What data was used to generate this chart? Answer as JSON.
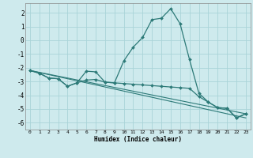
{
  "xlabel": "Humidex (Indice chaleur)",
  "background_color": "#ceeaed",
  "grid_color": "#aad4d8",
  "line_color": "#2d7a78",
  "xlim": [
    -0.5,
    23.5
  ],
  "ylim": [
    -6.5,
    2.7
  ],
  "yticks": [
    -6,
    -5,
    -4,
    -3,
    -2,
    -1,
    0,
    1,
    2
  ],
  "xticks": [
    0,
    1,
    2,
    3,
    4,
    5,
    6,
    7,
    8,
    9,
    10,
    11,
    12,
    13,
    14,
    15,
    16,
    17,
    18,
    19,
    20,
    21,
    22,
    23
  ],
  "line1_x": [
    0,
    1,
    2,
    3,
    4,
    5,
    6,
    7,
    8,
    9,
    10,
    11,
    12,
    13,
    14,
    15,
    16,
    17,
    18,
    19,
    20,
    21,
    22,
    23
  ],
  "line1_y": [
    -2.2,
    -2.4,
    -2.75,
    -2.8,
    -3.35,
    -3.1,
    -2.25,
    -2.3,
    -3.05,
    -3.1,
    -1.5,
    -0.5,
    0.2,
    1.5,
    1.6,
    2.3,
    1.2,
    -1.4,
    -3.85,
    -4.5,
    -4.9,
    -4.95,
    -5.65,
    -5.35
  ],
  "line2_x": [
    0,
    1,
    2,
    3,
    4,
    5,
    6,
    7,
    8,
    9,
    10,
    11,
    12,
    13,
    14,
    15,
    16,
    17,
    18,
    19,
    20,
    21,
    22,
    23
  ],
  "line2_y": [
    -2.2,
    -2.4,
    -2.75,
    -2.8,
    -3.35,
    -3.1,
    -2.9,
    -2.85,
    -3.05,
    -3.1,
    -3.15,
    -3.2,
    -3.25,
    -3.3,
    -3.35,
    -3.4,
    -3.45,
    -3.5,
    -4.1,
    -4.5,
    -4.9,
    -4.95,
    -5.65,
    -5.35
  ],
  "line3_x": [
    0,
    23
  ],
  "line3_y": [
    -2.2,
    -5.35
  ],
  "line4_x": [
    0,
    23
  ],
  "line4_y": [
    -2.2,
    -5.65
  ]
}
